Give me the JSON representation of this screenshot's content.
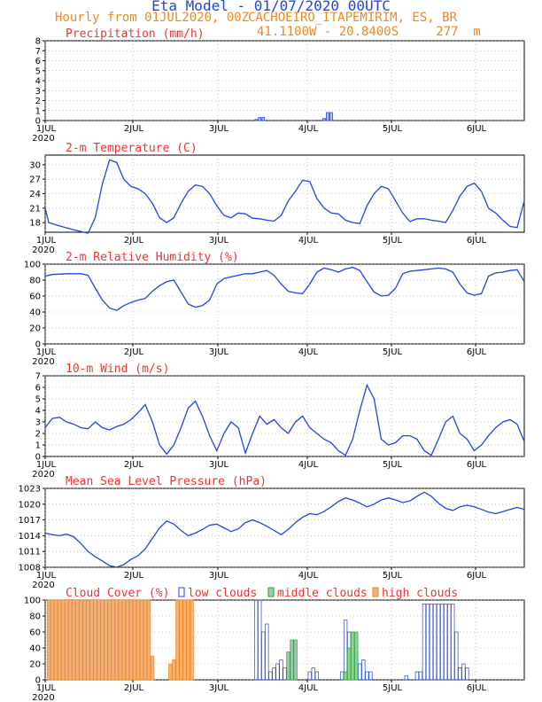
{
  "header": {
    "title": "Eta Model - 01/07/2020 00UTC",
    "subtitle_left": "Hourly from 01JUL2020, 00Z",
    "subtitle_right": "CACHOEIRO_ITAPEMIRIM, ES, BR",
    "coords": "41.1100W - 20.8400S     277  m"
  },
  "x_axis": {
    "range_hours": [
      0,
      134
    ],
    "tick_labels": [
      "1JUL",
      "2JUL",
      "3JUL",
      "4JUL",
      "5JUL",
      "6JUL"
    ],
    "year_label": "2020"
  },
  "colors": {
    "line": "#2244dd",
    "title": "#ee3333",
    "orange": "#ee8822",
    "green": "#22aa22",
    "fill_orange": "#f4b07a",
    "fill_blue": "#aaccee",
    "fill_green": "#99ccaa"
  },
  "legend": {
    "low": "low clouds",
    "middle": "middle clouds",
    "high": "high clouds"
  },
  "chart_data": [
    {
      "type": "bar",
      "title": "Precipitation (mm/h)",
      "ylim": [
        0,
        8
      ],
      "yticks": [
        "0",
        "1",
        "2",
        "3",
        "4",
        "5",
        "6",
        "7",
        "8"
      ],
      "grid": true,
      "x_hours": [
        59,
        60,
        61,
        78,
        79,
        80
      ],
      "values": [
        0.1,
        0.3,
        0.3,
        0.2,
        0.8,
        0.8
      ]
    },
    {
      "type": "line",
      "title": "2-m Temperature (C)",
      "ylim": [
        16,
        32
      ],
      "yticks": [
        "18",
        "21",
        "24",
        "27",
        "30"
      ],
      "grid": true,
      "x": [
        0,
        1,
        4,
        8,
        12,
        14,
        16,
        18,
        20,
        22,
        24,
        26,
        28,
        30,
        32,
        34,
        36,
        38,
        40,
        42,
        44,
        46,
        48,
        50,
        52,
        54,
        56,
        58,
        60,
        62,
        64,
        66,
        68,
        70,
        72,
        74,
        76,
        78,
        80,
        82,
        84,
        86,
        88,
        90,
        92,
        94,
        96,
        98,
        100,
        102,
        104,
        106,
        108,
        110,
        112,
        114,
        116,
        118,
        120,
        122,
        124,
        126,
        128,
        130,
        132,
        134
      ],
      "y": [
        21,
        18,
        17.3,
        16.5,
        15.8,
        19,
        26,
        31,
        30.5,
        27,
        25.5,
        25,
        24,
        22,
        19,
        18,
        19,
        22,
        24.5,
        25.8,
        25.5,
        24,
        21.5,
        19.5,
        19,
        20,
        19.8,
        18.9,
        18.8,
        18.5,
        18.3,
        19.5,
        22.5,
        24.5,
        26.8,
        26.5,
        23,
        21,
        20,
        19.8,
        18.5,
        18,
        17.8,
        21.5,
        24,
        25.5,
        25,
        22.5,
        20,
        18.2,
        18.8,
        18.8,
        18.5,
        18.3,
        18,
        20.5,
        23.5,
        25.5,
        26.2,
        24.5,
        21,
        20,
        18.5,
        17.2,
        17,
        22.5
      ]
    },
    {
      "type": "line",
      "title": "2-m Relative Humidity (%)",
      "ylim": [
        0,
        100
      ],
      "yticks": [
        "0",
        "20",
        "40",
        "60",
        "80",
        "100"
      ],
      "grid": true,
      "x": [
        0,
        2,
        6,
        10,
        12,
        14,
        16,
        18,
        20,
        22,
        24,
        26,
        28,
        30,
        32,
        34,
        36,
        38,
        40,
        42,
        44,
        46,
        48,
        50,
        52,
        54,
        56,
        58,
        60,
        62,
        64,
        66,
        68,
        70,
        72,
        74,
        76,
        78,
        80,
        82,
        84,
        86,
        88,
        90,
        92,
        94,
        96,
        98,
        100,
        102,
        104,
        106,
        108,
        110,
        112,
        114,
        116,
        118,
        120,
        122,
        124,
        126,
        128,
        130,
        132,
        134
      ],
      "y": [
        85,
        87,
        88,
        88,
        86,
        70,
        55,
        45,
        42,
        48,
        52,
        55,
        57,
        66,
        73,
        78,
        80,
        65,
        50,
        46,
        48,
        55,
        75,
        82,
        84,
        86,
        88,
        88,
        90,
        92,
        86,
        75,
        66,
        64,
        63,
        75,
        90,
        95,
        93,
        90,
        94,
        96,
        92,
        78,
        65,
        60,
        61,
        70,
        88,
        91,
        92,
        93,
        94,
        95,
        94,
        90,
        75,
        64,
        61,
        63,
        85,
        89,
        90,
        92,
        93,
        78
      ]
    },
    {
      "type": "line",
      "title": "10-m Wind (m/s)",
      "ylim": [
        0,
        7
      ],
      "yticks": [
        "0",
        "1",
        "2",
        "3",
        "4",
        "5",
        "6",
        "7"
      ],
      "grid": true,
      "x": [
        0,
        2,
        4,
        6,
        8,
        10,
        12,
        14,
        16,
        18,
        20,
        22,
        24,
        26,
        28,
        30,
        32,
        34,
        36,
        38,
        40,
        42,
        44,
        46,
        48,
        50,
        52,
        54,
        56,
        58,
        60,
        62,
        64,
        66,
        68,
        70,
        72,
        74,
        76,
        78,
        80,
        82,
        84,
        86,
        88,
        90,
        92,
        94,
        96,
        98,
        100,
        102,
        104,
        106,
        108,
        110,
        112,
        114,
        116,
        118,
        120,
        122,
        124,
        126,
        128,
        130,
        132,
        134
      ],
      "y": [
        2.5,
        3.3,
        3.4,
        3.0,
        2.8,
        2.5,
        2.4,
        3.0,
        2.5,
        2.3,
        2.6,
        2.8,
        3.2,
        3.8,
        4.5,
        3.0,
        1.0,
        0.2,
        1.0,
        2.5,
        4.2,
        4.8,
        3.5,
        1.8,
        0.5,
        2.0,
        3.0,
        2.5,
        0.3,
        2.0,
        3.5,
        2.8,
        3.2,
        2.5,
        2.0,
        3.0,
        3.5,
        2.5,
        2.0,
        1.5,
        1.2,
        0.5,
        0.1,
        1.5,
        4.0,
        6.2,
        5.0,
        1.5,
        1.0,
        1.2,
        1.8,
        1.8,
        1.5,
        0.5,
        0.1,
        1.5,
        3.0,
        3.5,
        2.0,
        1.5,
        0.5,
        1.0,
        1.8,
        2.5,
        3.0,
        3.2,
        2.8,
        1.3
      ]
    },
    {
      "type": "line",
      "title": "Mean Sea Level Pressure (hPa)",
      "ylim": [
        1008,
        1023
      ],
      "yticks": [
        "1008",
        "1011",
        "1014",
        "1017",
        "1020",
        "1023"
      ],
      "grid": true,
      "x": [
        0,
        2,
        4,
        6,
        8,
        10,
        12,
        14,
        16,
        18,
        20,
        22,
        24,
        26,
        28,
        30,
        32,
        34,
        36,
        38,
        40,
        42,
        44,
        46,
        48,
        50,
        52,
        54,
        56,
        58,
        60,
        62,
        64,
        66,
        68,
        70,
        72,
        74,
        76,
        78,
        80,
        82,
        84,
        86,
        88,
        90,
        92,
        94,
        96,
        98,
        100,
        102,
        104,
        106,
        108,
        110,
        112,
        114,
        116,
        118,
        120,
        122,
        124,
        126,
        128,
        130,
        132,
        134
      ],
      "y": [
        1014.5,
        1014.2,
        1014.0,
        1014.3,
        1013.8,
        1012.5,
        1011.0,
        1010.0,
        1009.2,
        1008.3,
        1008.0,
        1008.5,
        1009.5,
        1010.2,
        1011.5,
        1013.5,
        1015.5,
        1016.8,
        1016.2,
        1015.0,
        1014.0,
        1014.5,
        1015.2,
        1016.0,
        1016.2,
        1015.5,
        1014.8,
        1015.3,
        1016.5,
        1017.0,
        1016.5,
        1015.8,
        1015.0,
        1014.2,
        1015.2,
        1016.5,
        1017.5,
        1018.2,
        1018.0,
        1018.6,
        1019.5,
        1020.5,
        1021.2,
        1020.8,
        1020.2,
        1019.5,
        1020.0,
        1020.8,
        1021.2,
        1020.8,
        1020.3,
        1020.6,
        1021.5,
        1022.3,
        1021.5,
        1020.2,
        1019.2,
        1018.8,
        1019.5,
        1019.8,
        1019.5,
        1019.0,
        1018.5,
        1018.2,
        1018.6,
        1019.0,
        1019.4,
        1019.0
      ]
    },
    {
      "type": "bar",
      "title": "Cloud Cover (%)",
      "ylim": [
        0,
        100
      ],
      "yticks": [
        "0",
        "20",
        "40",
        "60",
        "80",
        "100"
      ],
      "grid": true,
      "legend": [
        "low clouds",
        "middle clouds",
        "high clouds"
      ],
      "high_clouds": {
        "x_hours": [
          1,
          2,
          3,
          4,
          5,
          6,
          7,
          8,
          9,
          10,
          11,
          12,
          13,
          14,
          15,
          16,
          17,
          18,
          19,
          20,
          21,
          22,
          23,
          24,
          25,
          26,
          27,
          28,
          29,
          30,
          31,
          32,
          33,
          34,
          35,
          36,
          37,
          38,
          39,
          40,
          41
        ],
        "values": [
          100,
          100,
          100,
          100,
          100,
          100,
          100,
          100,
          100,
          100,
          100,
          100,
          100,
          100,
          100,
          100,
          100,
          100,
          100,
          100,
          100,
          100,
          100,
          100,
          100,
          100,
          100,
          100,
          100,
          30,
          0,
          0,
          0,
          0,
          20,
          25,
          100,
          100,
          100,
          100,
          100
        ]
      },
      "low_clouds": {
        "x_hours": [
          59,
          60,
          61,
          62,
          63,
          64,
          65,
          66,
          67,
          74,
          75,
          76,
          83,
          84,
          85,
          86,
          87,
          88,
          89,
          90,
          91,
          92,
          93,
          94,
          95,
          96,
          97,
          98,
          99,
          100,
          101,
          104,
          105,
          106,
          107,
          108,
          109,
          110,
          111,
          112,
          113,
          114,
          115,
          116,
          117,
          118
        ],
        "values": [
          100,
          100,
          60,
          70,
          10,
          15,
          20,
          25,
          15,
          10,
          15,
          10,
          10,
          75,
          60,
          40,
          35,
          20,
          25,
          10,
          10,
          0,
          0,
          0,
          0,
          0,
          0,
          0,
          0,
          0,
          5,
          10,
          10,
          95,
          95,
          95,
          95,
          95,
          95,
          95,
          95,
          95,
          60,
          15,
          20,
          15
        ]
      },
      "middle_clouds": {
        "x_hours": [
          68,
          69,
          70,
          84,
          85,
          86,
          87
        ],
        "values": [
          35,
          50,
          50,
          10,
          40,
          60,
          60
        ]
      }
    }
  ]
}
